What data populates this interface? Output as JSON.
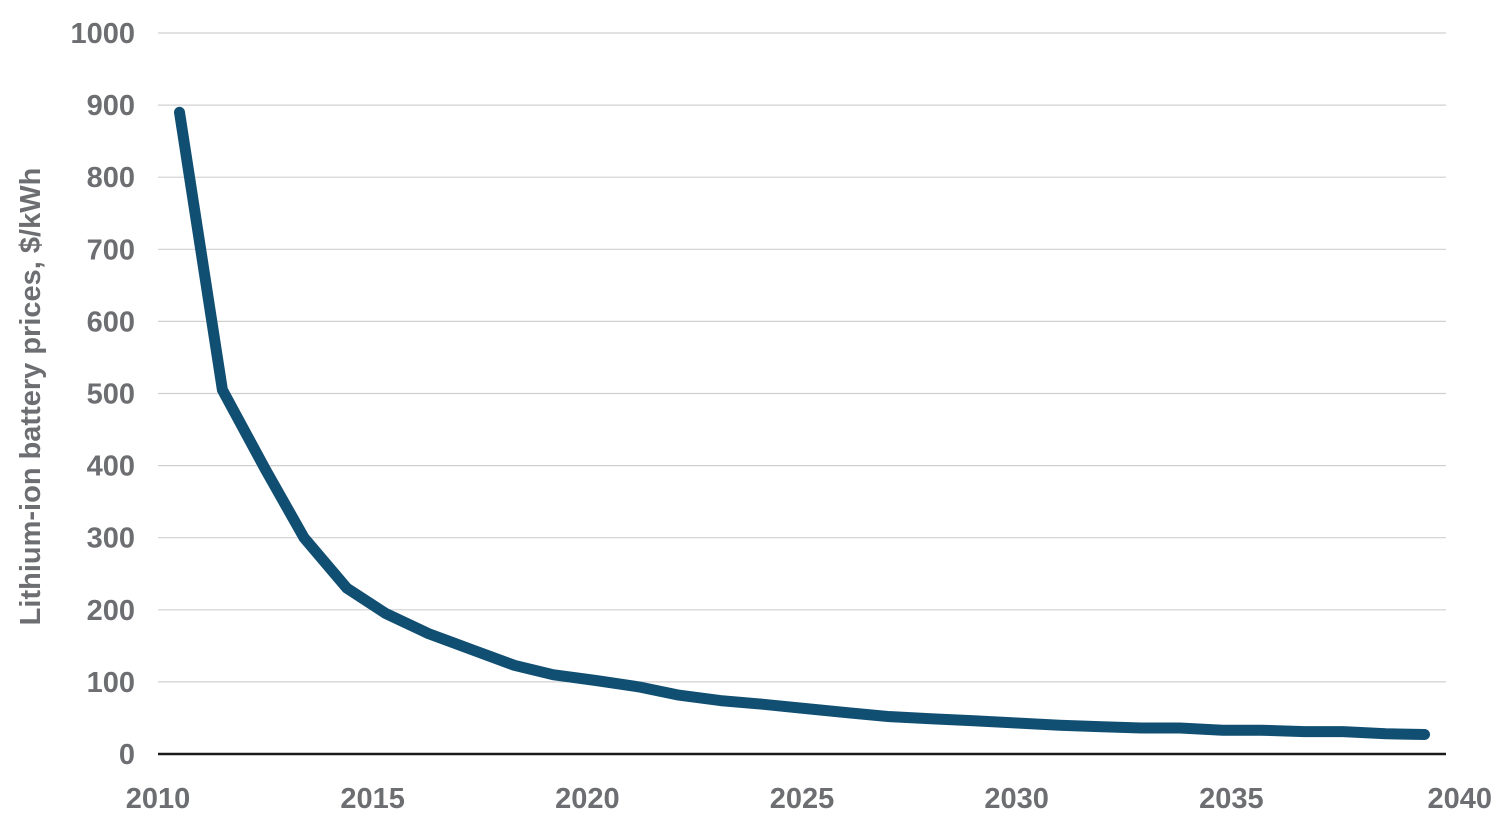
{
  "chart_data": {
    "type": "line",
    "title": "",
    "xlabel": "",
    "ylabel": "Lithium-ion battery prices, $/kWh",
    "xlim": [
      2010,
      2040
    ],
    "ylim": [
      0,
      1000
    ],
    "x_ticks": [
      "2010",
      "2015",
      "2020",
      "2025",
      "2030",
      "2035",
      "2040"
    ],
    "y_ticks": [
      "0",
      "100",
      "200",
      "300",
      "400",
      "500",
      "600",
      "700",
      "800",
      "900",
      "1000"
    ],
    "grid": true,
    "legend": "none",
    "series": [
      {
        "color": "#114f72",
        "points": [
          [
            2010.5,
            890
          ],
          [
            2011.5,
            505
          ],
          [
            2012.5,
            395
          ],
          [
            2013.4,
            300
          ],
          [
            2014.4,
            230
          ],
          [
            2015.3,
            195
          ],
          [
            2016.3,
            167
          ],
          [
            2017.3,
            145
          ],
          [
            2018.3,
            123
          ],
          [
            2019.2,
            110
          ],
          [
            2020.2,
            102
          ],
          [
            2021.2,
            93
          ],
          [
            2022.1,
            82
          ],
          [
            2023.1,
            74
          ],
          [
            2024.1,
            69
          ],
          [
            2025.1,
            63
          ],
          [
            2026.1,
            57
          ],
          [
            2027.0,
            52
          ],
          [
            2028.0,
            49
          ],
          [
            2029.0,
            46
          ],
          [
            2030.0,
            43
          ],
          [
            2031.0,
            40
          ],
          [
            2031.9,
            38
          ],
          [
            2032.9,
            36
          ],
          [
            2033.8,
            36
          ],
          [
            2034.8,
            33
          ],
          [
            2035.7,
            33
          ],
          [
            2036.7,
            31
          ],
          [
            2037.6,
            31
          ],
          [
            2038.6,
            28
          ],
          [
            2039.5,
            27
          ]
        ]
      }
    ]
  }
}
